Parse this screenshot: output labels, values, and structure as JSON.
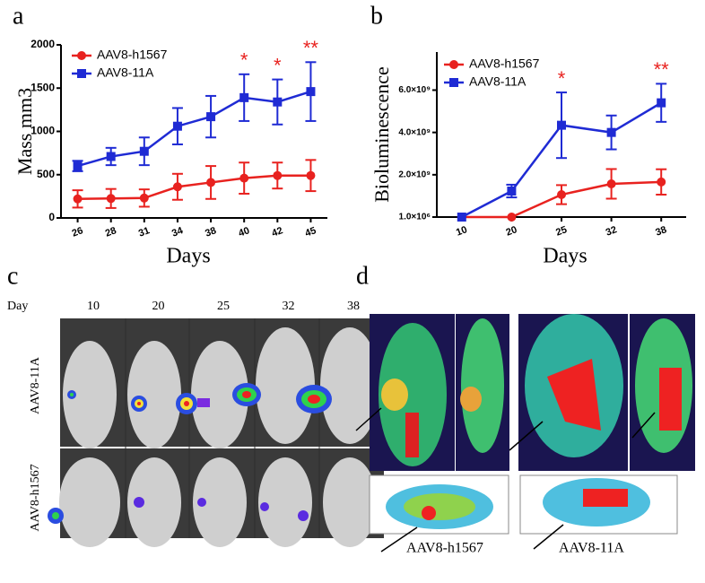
{
  "chart_data": [
    {
      "type": "line",
      "panel_label": "a",
      "ylabel": "Mass mm3",
      "xlabel": "Days",
      "categories": [
        "26",
        "28",
        "31",
        "34",
        "38",
        "40",
        "42",
        "45"
      ],
      "ylim": [
        0,
        2000
      ],
      "yticks": [
        0,
        500,
        1000,
        1500,
        2000
      ],
      "series": [
        {
          "name": "AAV8-h1567",
          "color": "#e8221f",
          "marker": "circle",
          "values": [
            220,
            225,
            230,
            360,
            410,
            460,
            490,
            490
          ],
          "errors": [
            100,
            110,
            100,
            150,
            190,
            180,
            150,
            180
          ]
        },
        {
          "name": "AAV8-11A",
          "color": "#1f2bd4",
          "marker": "square",
          "values": [
            600,
            710,
            770,
            1060,
            1170,
            1390,
            1340,
            1460
          ],
          "errors": [
            60,
            100,
            160,
            210,
            240,
            270,
            260,
            340
          ]
        }
      ],
      "annotations": [
        {
          "text": "*",
          "category": "40",
          "color": "#e8221f"
        },
        {
          "text": "*",
          "category": "42",
          "color": "#e8221f"
        },
        {
          "text": "**",
          "category": "45",
          "color": "#e8221f"
        }
      ]
    },
    {
      "type": "line",
      "panel_label": "b",
      "ylabel": "Bioluminescence",
      "xlabel": "Days",
      "categories": [
        "10",
        "20",
        "25",
        "32",
        "38"
      ],
      "ylim": [
        1000000,
        7800000000
      ],
      "yticks": [
        {
          "value": 1000000,
          "label": "1.0×10⁶"
        },
        {
          "value": 2000000000,
          "label": "2.0×10⁹"
        },
        {
          "value": 4000000000,
          "label": "4.0×10⁹"
        },
        {
          "value": 6000000000,
          "label": "6.0×10⁹"
        }
      ],
      "series": [
        {
          "name": "AAV8-h1567",
          "color": "#e8221f",
          "marker": "circle",
          "values": [
            1000000,
            1000000,
            1060000000,
            1570000000,
            1660000000
          ],
          "errors": [
            0,
            0,
            450000000,
            700000000,
            600000000
          ]
        },
        {
          "name": "AAV8-11A",
          "color": "#1f2bd4",
          "marker": "square",
          "values": [
            1000000,
            1230000000,
            4340000000,
            4000000000,
            5400000000
          ],
          "errors": [
            0,
            300000000,
            1550000000,
            800000000,
            900000000
          ]
        }
      ],
      "annotations": [
        {
          "text": "*",
          "category": "25",
          "color": "#e8221f"
        },
        {
          "text": "**",
          "category": "38",
          "color": "#e8221f"
        }
      ]
    }
  ],
  "panel_c": {
    "label": "c",
    "day_label": "Day",
    "days": [
      "10",
      "20",
      "25",
      "32",
      "38"
    ],
    "rows": [
      "AAV8-11A",
      "AAV8-h1567"
    ]
  },
  "panel_d": {
    "label": "d",
    "captions": [
      "AAV8-h1567",
      "AAV8-11A"
    ]
  }
}
